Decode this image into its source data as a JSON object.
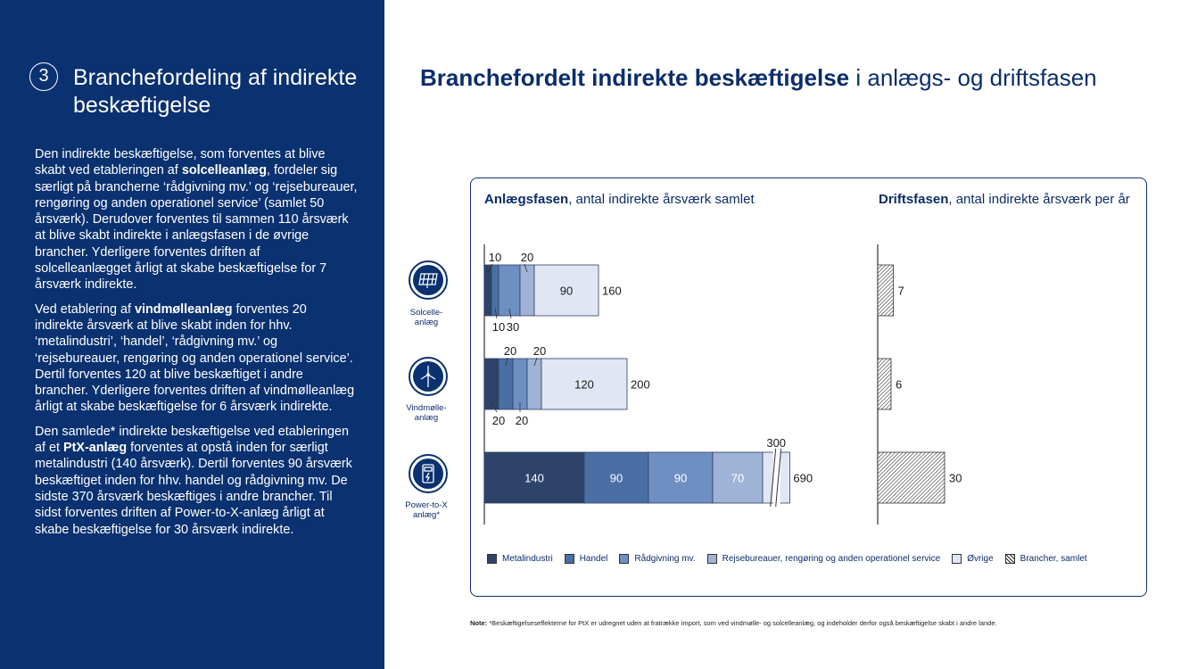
{
  "sidebar": {
    "number": "3",
    "title": "Branchefordeling af indirekte beskæftigelse",
    "paragraphs": [
      {
        "parts": [
          {
            "t": "Den indirekte beskæftigelse, som forventes at blive skabt ved etableringen af "
          },
          {
            "t": "solcelleanlæg",
            "b": true
          },
          {
            "t": ", fordeler sig særligt på brancherne ‘rådgivning mv.’ og ‘rejsebureauer, rengøring og anden operationel service’ (samlet 50 årsværk). Derudover forventes til sammen 110 årsværk at blive skabt indirekte i anlægsfasen i de øvrige brancher. Yderligere forventes driften af solcelleanlægget årligt at skabe beskæftigelse for 7 årsværk indirekte."
          }
        ]
      },
      {
        "parts": [
          {
            "t": "Ved etablering af "
          },
          {
            "t": "vindmølleanlæg",
            "b": true
          },
          {
            "t": " forventes 20 indirekte årsværk at blive skabt inden for hhv. ‘metalindustri’, ‘handel’, ‘rådgivning mv.’ og ‘rejsebureauer, rengøring og anden operationel service’. Dertil forventes 120 at blive beskæftiget i andre brancher. Yderligere forventes driften af vindmølleanlæg årligt at skabe beskæftigelse for 6 årsværk indirekte."
          }
        ]
      },
      {
        "parts": [
          {
            "t": "Den samlede* indirekte beskæftigelse ved etableringen af et "
          },
          {
            "t": "PtX-anlæg",
            "b": true
          },
          {
            "t": " forventes at opstå inden for særligt metalindustri (140 årsværk). Dertil forventes 90 årsværk beskæftiget inden for hhv. handel og rådgivning mv. De sidste 370 årsværk beskæftiges i andre brancher. Til sidst forventes driften af Power-to-X-anlæg årligt at skabe beskæftigelse for 30 årsværk indirekte."
          }
        ]
      }
    ]
  },
  "main_title": {
    "bold": "Branchefordelt indirekte beskæftigelse",
    "normal": " i anlægs- og driftsfasen"
  },
  "panels": {
    "left": {
      "bold": "Anlægsfasen",
      "normal": ", antal indirekte årsværk samlet"
    },
    "right": {
      "bold": "Driftsfasen",
      "normal": ", antal indirekte årsværk per år"
    }
  },
  "icons": [
    {
      "label": "Solcelle-\nanlæg",
      "icon": "solar-panel-icon"
    },
    {
      "label": "Vindmølle-\nanlæg",
      "icon": "wind-turbine-icon"
    },
    {
      "label": "Power-to-X\nanlæg*",
      "icon": "ptx-station-icon"
    }
  ],
  "chart_data": [
    {
      "type": "bar",
      "orientation": "horizontal",
      "stacked": true,
      "title": "Anlægsfasen, antal indirekte årsværk samlet",
      "categories": [
        "Solcelleanlæg",
        "Vindmølleanlæg",
        "Power-to-X anlæg"
      ],
      "series": [
        {
          "name": "Metalindustri",
          "values": [
            10,
            20,
            140
          ],
          "color": "#2d4468"
        },
        {
          "name": "Handel",
          "values": [
            10,
            20,
            90
          ],
          "color": "#4a6fa5"
        },
        {
          "name": "Rådgivning mv.",
          "values": [
            30,
            20,
            90
          ],
          "color": "#6f8fc2"
        },
        {
          "name": "Rejsebureauer, rengøring og anden operationel service",
          "values": [
            20,
            20,
            70
          ],
          "color": "#9fb3d6"
        },
        {
          "name": "Øvrige",
          "values": [
            90,
            120,
            300
          ],
          "color": "#e1e7f2"
        }
      ],
      "totals": [
        160,
        200,
        690
      ],
      "axis_break": {
        "category": "Power-to-X anlæg",
        "series": "Øvrige"
      }
    },
    {
      "type": "bar",
      "orientation": "horizontal",
      "title": "Driftsfasen, antal indirekte årsværk per år",
      "categories": [
        "Solcelleanlæg",
        "Vindmølleanlæg",
        "Power-to-X anlæg"
      ],
      "series": [
        {
          "name": "Brancher, samlet",
          "values": [
            7,
            6,
            30
          ],
          "pattern": "hatched"
        }
      ]
    }
  ],
  "legend": [
    {
      "label": "Metalindustri",
      "color": "#2d4468"
    },
    {
      "label": "Handel",
      "color": "#4a6fa5"
    },
    {
      "label": "Rådgivning mv.",
      "color": "#6f8fc2"
    },
    {
      "label": "Rejsebureauer, rengøring og anden operationel service",
      "color": "#9fb3d6"
    },
    {
      "label": "Øvrige",
      "color": "#e1e7f2"
    },
    {
      "label": "Brancher, samlet",
      "pattern": "hatched"
    }
  ],
  "note": {
    "label": "Note:",
    "text": " *Beskæftigelseseffekterne for PtX er udregnet uden at fratrække import, som ved vindmølle- og solcelleanlæg, og indeholder derfor også beskæftigelse skabt i andre lande."
  }
}
